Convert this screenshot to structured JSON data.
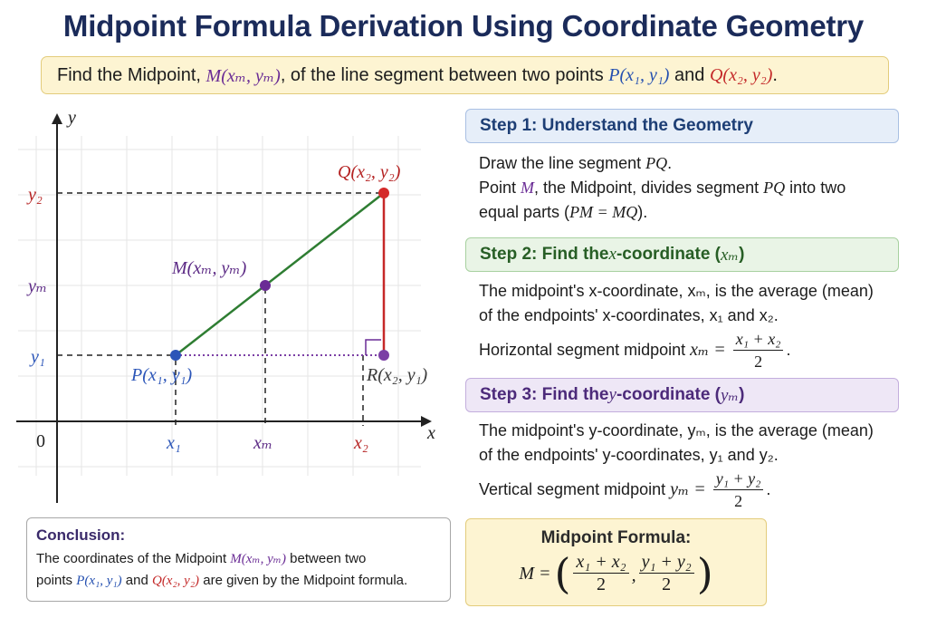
{
  "title": "Midpoint Formula Derivation Using Coordinate Geometry",
  "banner": {
    "prefix": "Find the Midpoint,",
    "point_m": "M(xₘ, yₘ)",
    "middle": ", of the line segment between two points",
    "point_p": "P(x₁, y₁)",
    "and": "and",
    "point_q": "Q(x₂, y₂)",
    "suffix": "."
  },
  "diagram": {
    "axis_x": "x",
    "axis_y": "y",
    "origin": "0",
    "tick_x1": "x₁",
    "tick_xm": "xₘ",
    "tick_x2": "x₂",
    "tick_y1": "y₁",
    "tick_ym": "yₘ",
    "tick_y2": "y₂",
    "label_p": "P(x₁, y₁)",
    "label_m": "M(xₘ, yₘ)",
    "label_q": "Q(x₂, y₂)",
    "label_r": "R(x₂, y₁)",
    "colors": {
      "p": "#2b55b8",
      "q": "#d42a2a",
      "m": "#6a2c95",
      "segment": "#2e7d32",
      "vertical": "#c62828",
      "horizontal": "#7b3fa5"
    }
  },
  "step1": {
    "heading": "Step 1: Understand the Geometry",
    "line1_pre": "Draw the line segment ",
    "line1_math": "PQ",
    "line1_post": ".",
    "line2_pre": "Point ",
    "line2_m": "M",
    "line2_mid": ", the Midpoint, divides segment ",
    "line2_math": "PQ",
    "line2_post": " into two",
    "line3_pre": "equal parts (",
    "line3_math": "PM = MQ",
    "line3_post": ")."
  },
  "step2": {
    "heading_pre": "Step 2: Find the ",
    "heading_math": "x",
    "heading_mid": "-coordinate (",
    "heading_math2": "xₘ",
    "heading_post": ")",
    "text1": "The midpoint's x-coordinate, xₘ, is the average (mean)",
    "text2": "of the endpoints' x-coordinates, x₁ and x₂.",
    "text3": "Horizontal segment midpoint",
    "lhs": "xₘ =",
    "num": "x₁ + x₂",
    "den": "2",
    "end": "."
  },
  "step3": {
    "heading_pre": "Step 3: Find the ",
    "heading_math": "y",
    "heading_mid": "-coordinate (",
    "heading_math2": "yₘ",
    "heading_post": ")",
    "text1": "The midpoint's y-coordinate, yₘ, is the average (mean)",
    "text2": "of the endpoints' y-coordinates, y₁ and y₂.",
    "text3": "Vertical segment midpoint",
    "lhs": "yₘ =",
    "num": "y₁ + y₂",
    "den": "2",
    "end": "."
  },
  "conclusion": {
    "heading": "Conclusion:",
    "line1_pre": "The coordinates of the Midpoint ",
    "line1_m": "M(xₘ, yₘ)",
    "line1_post": " between two",
    "line2_pre": "points ",
    "line2_p": "P(x₁, y₁)",
    "line2_and": " and ",
    "line2_q": "Q(x₂, y₂)",
    "line2_post": " are given by the Midpoint formula."
  },
  "formula": {
    "heading": "Midpoint Formula:",
    "lhs": "M =",
    "num_x": "x₁ + x₂",
    "den_x": "2",
    "comma": ",",
    "num_y": "y₁ + y₂",
    "den_y": "2"
  }
}
